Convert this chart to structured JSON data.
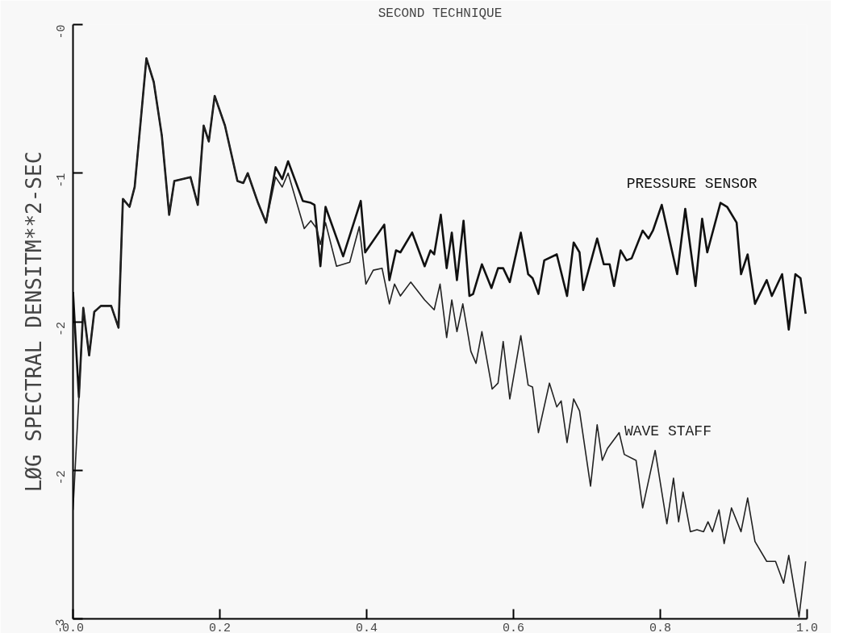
{
  "chart_data": {
    "type": "line",
    "title": "SECOND TECHNIQUE",
    "ylabel": "LØG SPECTRAL DENSITM**2-SEC",
    "xlim": [
      0,
      1
    ],
    "ylim": [
      -3,
      0
    ],
    "grid": false,
    "marker": "none",
    "line_style": "solid",
    "xticks": [
      {
        "value": 0,
        "label": "0.0"
      },
      {
        "value": 0.2,
        "label": "0.2"
      },
      {
        "value": 0.4,
        "label": "0.4"
      },
      {
        "value": 0.6,
        "label": "0.6"
      },
      {
        "value": 0.8,
        "label": "0.8"
      },
      {
        "value": 1,
        "label": "1.0"
      }
    ],
    "yticks": [
      {
        "value": 0,
        "label": "-0"
      },
      {
        "value": -0.75,
        "label": "-1"
      },
      {
        "value": -1.5,
        "label": "-2"
      },
      {
        "value": -2.25,
        "label": "-2"
      },
      {
        "value": -3,
        "label": "-3"
      }
    ],
    "series": [
      {
        "name": "PRESSURE SENSOR",
        "color": "#111111",
        "x": [
          0,
          0.008,
          0.014,
          0.022,
          0.029,
          0.038,
          0.052,
          0.062,
          0.068,
          0.077,
          0.084,
          0.1,
          0.11,
          0.121,
          0.131,
          0.138,
          0.16,
          0.17,
          0.178,
          0.185,
          0.193,
          0.207,
          0.224,
          0.232,
          0.238,
          0.252,
          0.263,
          0.276,
          0.285,
          0.293,
          0.313,
          0.324,
          0.329,
          0.337,
          0.344,
          0.368,
          0.392,
          0.398,
          0.424,
          0.431,
          0.44,
          0.446,
          0.462,
          0.479,
          0.487,
          0.492,
          0.501,
          0.509,
          0.516,
          0.523,
          0.532,
          0.54,
          0.545,
          0.557,
          0.57,
          0.579,
          0.586,
          0.595,
          0.61,
          0.62,
          0.626,
          0.634,
          0.642,
          0.659,
          0.673,
          0.682,
          0.69,
          0.695,
          0.714,
          0.723,
          0.731,
          0.737,
          0.746,
          0.754,
          0.761,
          0.776,
          0.784,
          0.79,
          0.802,
          0.823,
          0.834,
          0.848,
          0.857,
          0.864,
          0.882,
          0.891,
          0.904,
          0.91,
          0.919,
          0.929,
          0.945,
          0.952,
          0.966,
          0.975,
          0.984,
          0.991,
          0.998
        ],
        "values": [
          -1.35,
          -1.88,
          -1.43,
          -1.67,
          -1.45,
          -1.42,
          -1.42,
          -1.53,
          -0.88,
          -0.92,
          -0.82,
          -0.17,
          -0.29,
          -0.56,
          -0.96,
          -0.79,
          -0.77,
          -0.91,
          -0.51,
          -0.59,
          -0.36,
          -0.51,
          -0.79,
          -0.8,
          -0.75,
          -0.9,
          -1.0,
          -0.72,
          -0.78,
          -0.69,
          -0.89,
          -0.9,
          -0.91,
          -1.22,
          -0.92,
          -1.17,
          -0.89,
          -1.15,
          -1.01,
          -1.29,
          -1.14,
          -1.15,
          -1.05,
          -1.22,
          -1.14,
          -1.16,
          -0.96,
          -1.23,
          -1.05,
          -1.29,
          -0.99,
          -1.37,
          -1.36,
          -1.21,
          -1.33,
          -1.23,
          -1.23,
          -1.3,
          -1.05,
          -1.26,
          -1.28,
          -1.36,
          -1.19,
          -1.16,
          -1.37,
          -1.1,
          -1.15,
          -1.34,
          -1.08,
          -1.21,
          -1.21,
          -1.32,
          -1.14,
          -1.19,
          -1.18,
          -1.04,
          -1.08,
          -1.04,
          -0.91,
          -1.26,
          -0.93,
          -1.32,
          -0.98,
          -1.15,
          -0.9,
          -0.92,
          -1.0,
          -1.26,
          -1.16,
          -1.41,
          -1.29,
          -1.37,
          -1.26,
          -1.54,
          -1.26,
          -1.28,
          -1.46
        ]
      },
      {
        "name": "WAVE STAFF",
        "color": "#222222",
        "x": [
          0,
          0.008,
          0.014,
          0.022,
          0.029,
          0.038,
          0.052,
          0.062,
          0.068,
          0.077,
          0.084,
          0.1,
          0.11,
          0.121,
          0.131,
          0.138,
          0.16,
          0.17,
          0.178,
          0.185,
          0.193,
          0.207,
          0.224,
          0.232,
          0.238,
          0.252,
          0.263,
          0.276,
          0.285,
          0.293,
          0.315,
          0.324,
          0.332,
          0.337,
          0.344,
          0.359,
          0.377,
          0.39,
          0.399,
          0.409,
          0.421,
          0.431,
          0.438,
          0.446,
          0.46,
          0.479,
          0.492,
          0.5,
          0.509,
          0.516,
          0.523,
          0.531,
          0.542,
          0.549,
          0.557,
          0.571,
          0.579,
          0.586,
          0.595,
          0.61,
          0.62,
          0.626,
          0.634,
          0.649,
          0.659,
          0.665,
          0.673,
          0.682,
          0.69,
          0.705,
          0.714,
          0.721,
          0.728,
          0.744,
          0.751,
          0.767,
          0.776,
          0.793,
          0.809,
          0.818,
          0.825,
          0.831,
          0.841,
          0.85,
          0.859,
          0.865,
          0.871,
          0.88,
          0.887,
          0.897,
          0.91,
          0.919,
          0.929,
          0.945,
          0.957,
          0.968,
          0.975,
          0.989,
          0.998
        ],
        "values": [
          -2.45,
          -1.88,
          -1.43,
          -1.67,
          -1.45,
          -1.42,
          -1.42,
          -1.53,
          -0.88,
          -0.92,
          -0.82,
          -0.17,
          -0.29,
          -0.56,
          -0.96,
          -0.79,
          -0.77,
          -0.91,
          -0.51,
          -0.59,
          -0.36,
          -0.51,
          -0.79,
          -0.8,
          -0.75,
          -0.9,
          -1.0,
          -0.77,
          -0.82,
          -0.75,
          -1.03,
          -0.99,
          -1.03,
          -1.11,
          -1.0,
          -1.22,
          -1.2,
          -1.02,
          -1.31,
          -1.24,
          -1.23,
          -1.41,
          -1.31,
          -1.37,
          -1.3,
          -1.39,
          -1.44,
          -1.31,
          -1.58,
          -1.39,
          -1.55,
          -1.41,
          -1.65,
          -1.71,
          -1.55,
          -1.84,
          -1.81,
          -1.6,
          -1.89,
          -1.57,
          -1.82,
          -1.83,
          -2.06,
          -1.81,
          -1.93,
          -1.9,
          -2.11,
          -1.89,
          -1.95,
          -2.33,
          -2.02,
          -2.2,
          -2.14,
          -2.06,
          -2.17,
          -2.2,
          -2.44,
          -2.15,
          -2.52,
          -2.29,
          -2.51,
          -2.36,
          -2.56,
          -2.55,
          -2.56,
          -2.51,
          -2.56,
          -2.45,
          -2.62,
          -2.44,
          -2.56,
          -2.39,
          -2.61,
          -2.71,
          -2.71,
          -2.82,
          -2.68,
          -2.99,
          -2.71
        ]
      }
    ]
  }
}
